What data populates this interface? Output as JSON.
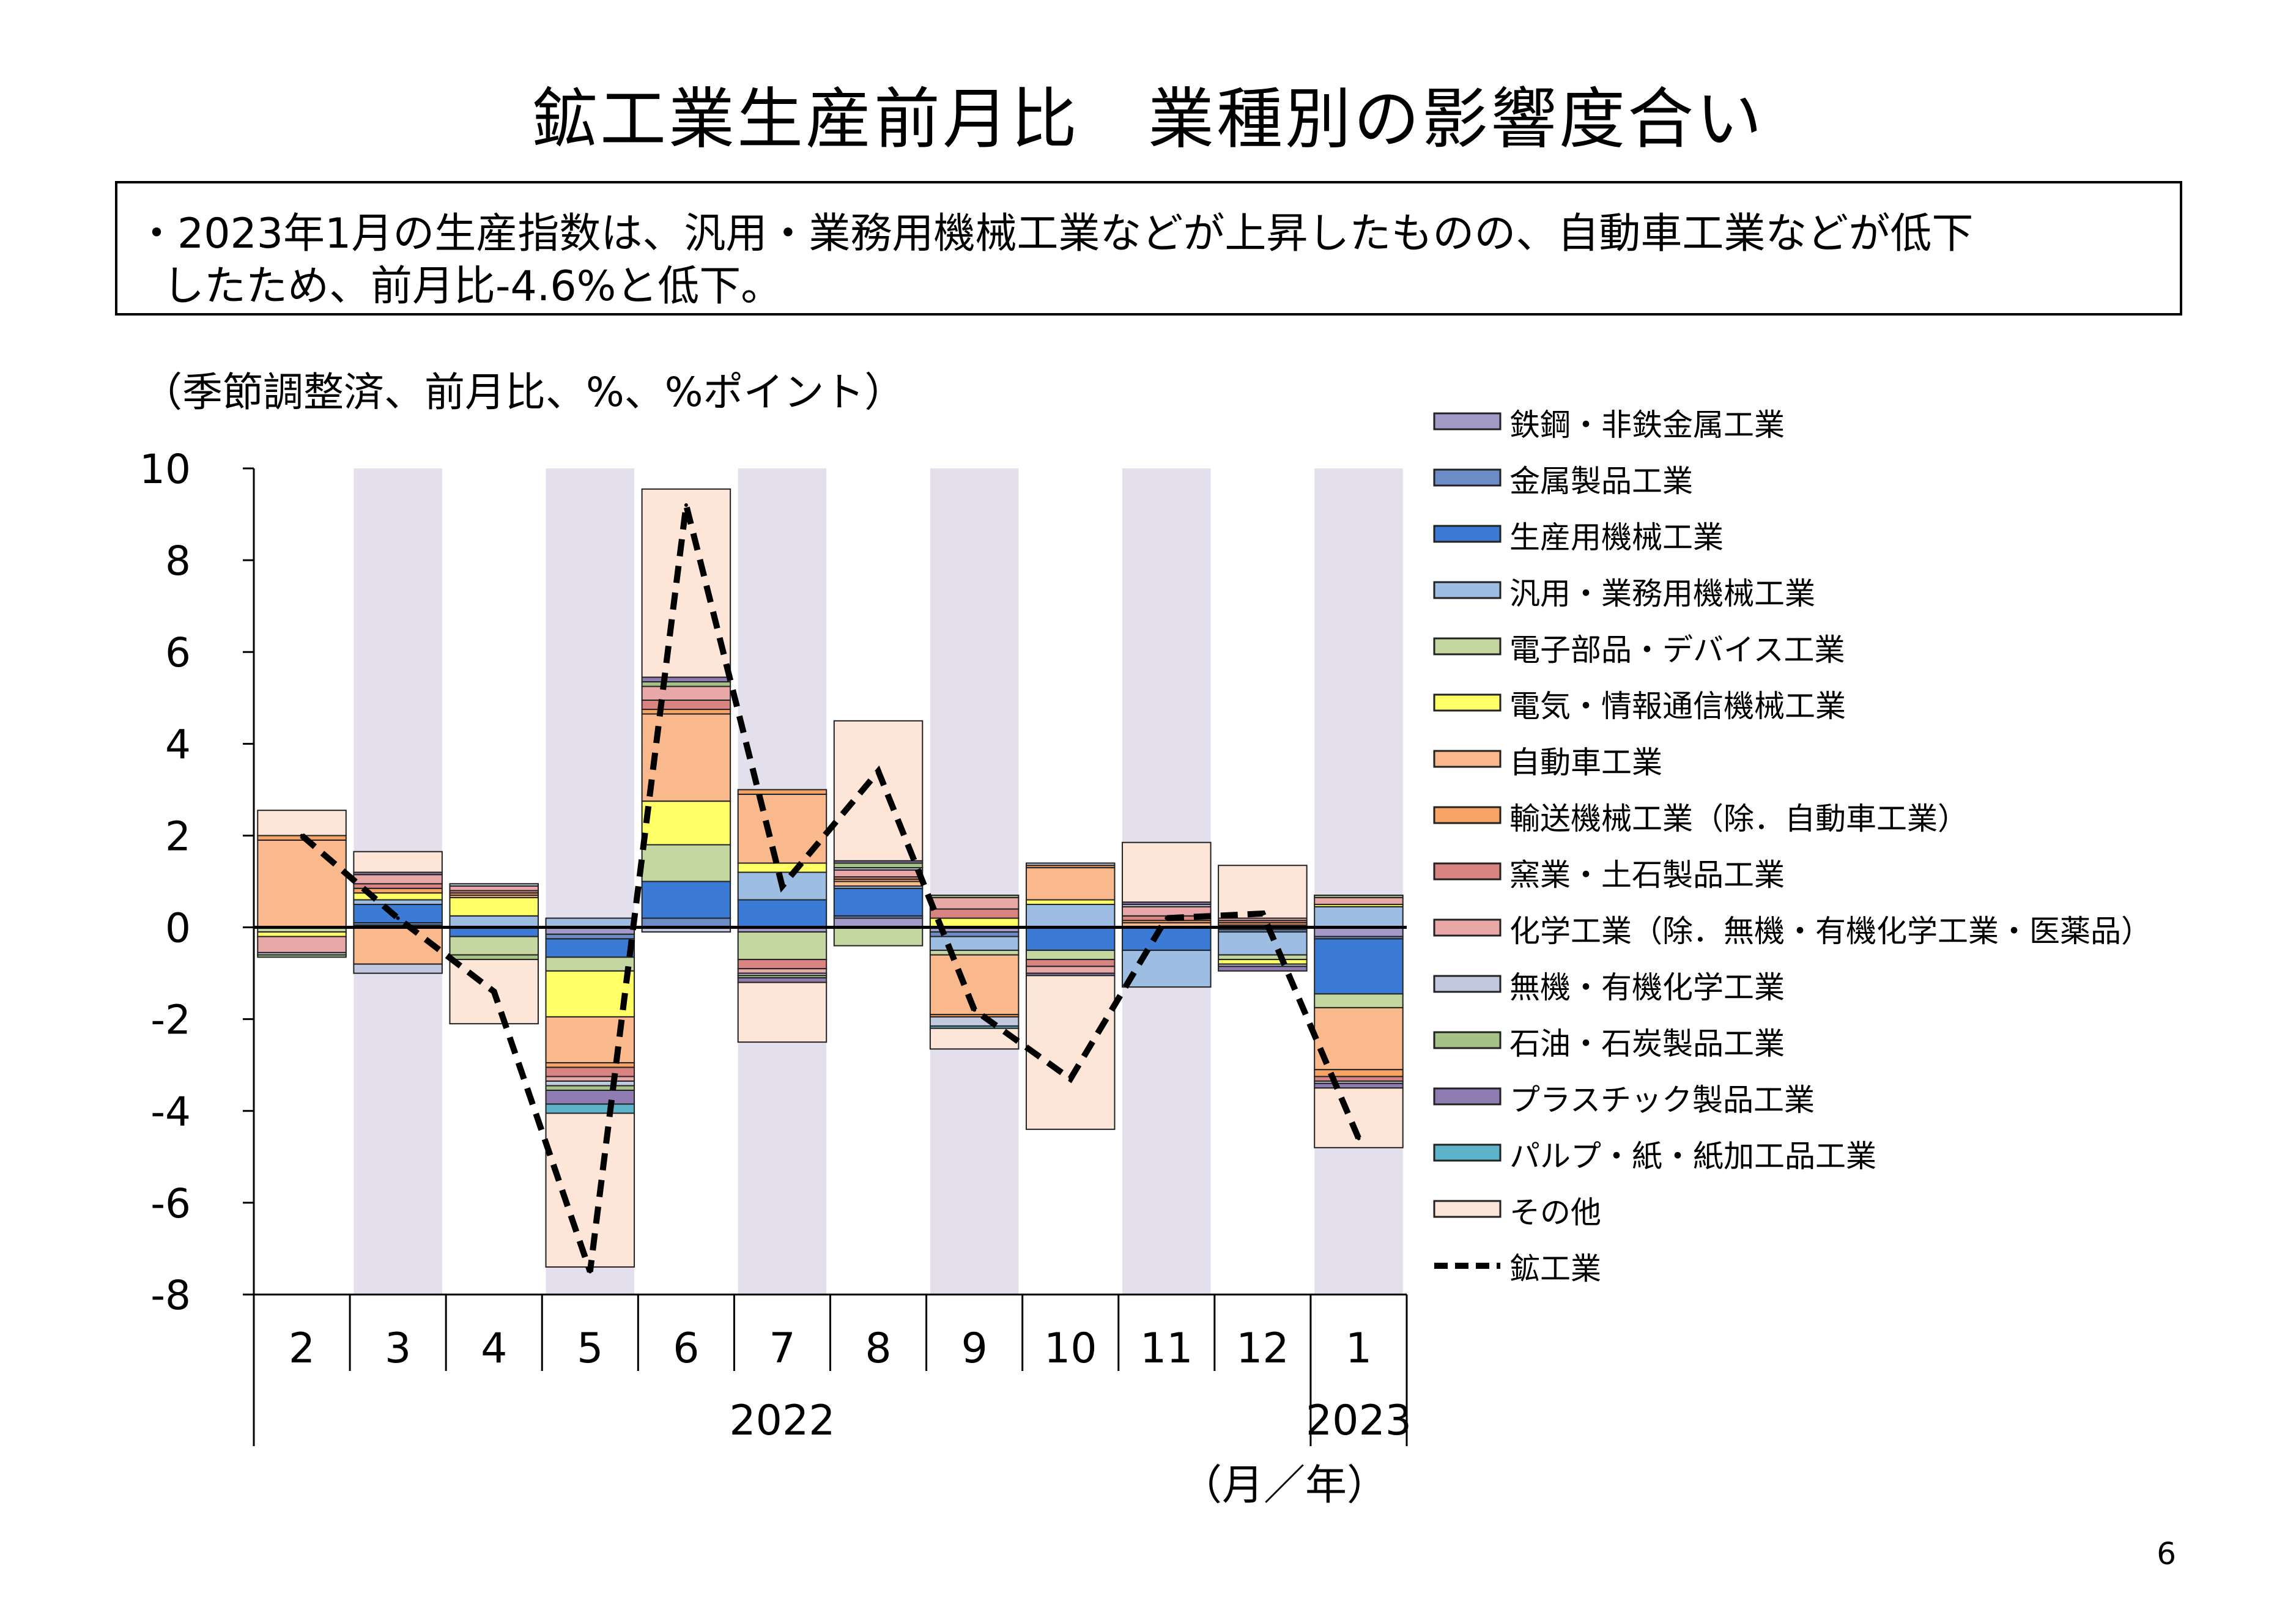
{
  "title": "鉱工業生産前月比　業種別の影響度合い",
  "summary": {
    "line1": "・2023年1月の生産指数は、汎用・業務用機械工業などが上昇したものの、自動車工業などが低下",
    "line2": "したため、前月比-4.6%と低下。"
  },
  "page_number": "6",
  "chart_data": {
    "type": "bar",
    "subtype": "stacked-bar-with-line",
    "unit_label": "（季節調整済、前月比、%、%ポイント）",
    "x_title": "（月／年）",
    "categories": [
      "2",
      "3",
      "4",
      "5",
      "6",
      "7",
      "8",
      "9",
      "10",
      "11",
      "12",
      "1"
    ],
    "year_labels": [
      {
        "label": "2022",
        "from": 0,
        "to": 10
      },
      {
        "label": "2023",
        "from": 11,
        "to": 11
      }
    ],
    "ylim": [
      -8,
      10
    ],
    "yticks": [
      10,
      8,
      6,
      4,
      2,
      0,
      -2,
      -4,
      -6,
      -8
    ],
    "grid": false,
    "legend_position": "right",
    "shaded_columns": [
      1,
      3,
      5,
      7,
      9,
      11
    ],
    "shade_color": "#e3dfec",
    "series": [
      {
        "name": "鉄鋼・非鉄金属工業",
        "color": "#a39ac7",
        "values": [
          0,
          0.05,
          0,
          -0.15,
          0,
          -0.1,
          0.2,
          -0.1,
          0,
          0,
          -0.05,
          -0.2
        ]
      },
      {
        "name": "金属製品工業",
        "color": "#6b8cc6",
        "values": [
          0,
          0.05,
          0,
          -0.1,
          0.2,
          0,
          0.05,
          -0.1,
          0,
          0,
          -0.05,
          -0.05
        ]
      },
      {
        "name": "生産用機械工業",
        "color": "#3b7bd6",
        "values": [
          0,
          0.4,
          -0.2,
          -0.4,
          0.8,
          0.6,
          0.6,
          0,
          -0.5,
          -0.5,
          0,
          -1.2
        ]
      },
      {
        "name": "汎用・業務用機械工業",
        "color": "#9dbde2",
        "values": [
          0,
          0.1,
          0.25,
          0.2,
          0,
          0.6,
          0.05,
          -0.3,
          0.5,
          -0.8,
          -0.5,
          0.45
        ]
      },
      {
        "name": "電子部品・デバイス工業",
        "color": "#c4d7a0",
        "values": [
          -0.1,
          0,
          -0.4,
          -0.3,
          0.8,
          -0.6,
          -0.4,
          -0.1,
          -0.2,
          0,
          -0.1,
          -0.3
        ]
      },
      {
        "name": "電気・情報通信機械工業",
        "color": "#ffff66",
        "values": [
          -0.1,
          0.15,
          0.4,
          -1.0,
          0.95,
          0.2,
          0,
          0.2,
          0.1,
          0,
          -0.1,
          0.05
        ]
      },
      {
        "name": "自動車工業",
        "color": "#f9b98c",
        "values": [
          1.9,
          -0.8,
          0.05,
          -1.0,
          1.9,
          1.5,
          0.1,
          -1.3,
          0.7,
          0.1,
          0.05,
          -1.35
        ]
      },
      {
        "name": "輸送機械工業（除．自動車工業）",
        "color": "#f7a464",
        "values": [
          0.1,
          0.1,
          0.05,
          -0.1,
          0.1,
          0.1,
          0.05,
          -0.05,
          0.05,
          0.05,
          0.05,
          -0.15
        ]
      },
      {
        "name": "窯業・土石製品工業",
        "color": "#d98480",
        "values": [
          0,
          0.1,
          0.05,
          -0.2,
          0.2,
          -0.2,
          0.05,
          0.2,
          -0.15,
          0.1,
          0.05,
          -0.1
        ]
      },
      {
        "name": "化学工業（除．無機・有機化学工業・医薬品）",
        "color": "#e8a8a8",
        "values": [
          -0.35,
          0.2,
          0.1,
          -0.1,
          0.3,
          -0.1,
          0.15,
          0.25,
          -0.15,
          0.2,
          0.05,
          0.15
        ]
      },
      {
        "name": "無機・有機化学工業",
        "color": "#c2c8e0",
        "values": [
          -0.05,
          -0.2,
          0.05,
          -0.1,
          -0.1,
          -0.05,
          0.05,
          -0.2,
          0.05,
          0.05,
          -0.05,
          -0.05
        ]
      },
      {
        "name": "石油・石炭製品工業",
        "color": "#a6c387",
        "values": [
          -0.05,
          0,
          -0.1,
          -0.1,
          0.1,
          -0.05,
          0.1,
          0.05,
          0,
          0,
          0,
          0.05
        ]
      },
      {
        "name": "プラスチック製品工業",
        "color": "#8f7cb0",
        "values": [
          0,
          0.05,
          0,
          -0.3,
          0.1,
          -0.1,
          0.05,
          0,
          -0.05,
          0.05,
          -0.1,
          -0.1
        ]
      },
      {
        "name": "パルプ・紙・紙加工品工業",
        "color": "#5db3c9",
        "values": [
          0,
          0,
          0,
          -0.2,
          0,
          0,
          0,
          -0.05,
          0,
          0,
          0,
          0
        ]
      },
      {
        "name": "その他",
        "color": "#fde6d8",
        "values": [
          0.55,
          0.45,
          -1.4,
          -3.35,
          4.1,
          -1.3,
          3.05,
          -0.45,
          -3.35,
          1.3,
          1.15,
          -1.3
        ]
      }
    ],
    "line_series": {
      "name": "鉱工業",
      "style": "dashed",
      "color": "#000000",
      "values": [
        2.0,
        0.2,
        -1.4,
        -7.5,
        9.2,
        0.9,
        3.4,
        -1.8,
        -3.3,
        0.2,
        0.3,
        -4.6
      ]
    }
  }
}
